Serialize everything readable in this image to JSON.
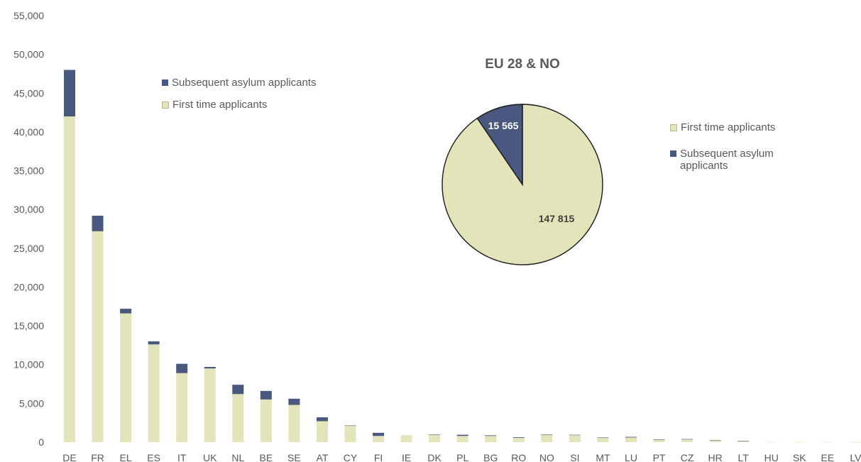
{
  "colors": {
    "first_time": "#e4e4bb",
    "subsequent": "#48587e",
    "axis_text": "#595959"
  },
  "chart_data": [
    {
      "type": "bar",
      "stacked": true,
      "categories": [
        "DE",
        "FR",
        "EL",
        "ES",
        "IT",
        "UK",
        "NL",
        "BE",
        "SE",
        "AT",
        "CY",
        "FI",
        "IE",
        "DK",
        "PL",
        "BG",
        "RO",
        "NO",
        "SI",
        "MT",
        "LU",
        "PT",
        "CZ",
        "HR",
        "LT",
        "HU",
        "SK",
        "EE",
        "LV"
      ],
      "series": [
        {
          "name": "First time applicants",
          "values": [
            42000,
            27200,
            16600,
            12600,
            8900,
            9500,
            6200,
            5500,
            4800,
            2700,
            2100,
            800,
            900,
            950,
            800,
            800,
            550,
            950,
            900,
            550,
            600,
            350,
            350,
            200,
            100,
            30,
            20,
            10,
            5
          ]
        },
        {
          "name": "Subsequent asylum applicants",
          "values": [
            6000,
            2000,
            600,
            400,
            1200,
            200,
            1200,
            1100,
            800,
            500,
            50,
            400,
            0,
            50,
            150,
            80,
            80,
            50,
            50,
            50,
            80,
            20,
            50,
            50,
            50,
            0,
            0,
            0,
            0
          ]
        }
      ],
      "yticks": [
        "0",
        "5,000",
        "10,000",
        "15,000",
        "20,000",
        "25,000",
        "30,000",
        "35,000",
        "40,000",
        "45,000",
        "50,000",
        "55,000"
      ],
      "ylim": [
        0,
        55000
      ],
      "legend": [
        "Subsequent asylum applicants",
        "First time applicants"
      ],
      "legend_position": "top-left",
      "grid": false
    },
    {
      "type": "pie",
      "title": "EU 28 & NO",
      "slices": [
        {
          "name": "First time applicants",
          "value": 147815,
          "label": "147 815"
        },
        {
          "name": "Subsequent asylum applicants",
          "value": 15565,
          "label": "15 565"
        }
      ],
      "legend": [
        "First time applicants",
        "Subsequent asylum applicants"
      ],
      "legend_position": "right"
    }
  ]
}
